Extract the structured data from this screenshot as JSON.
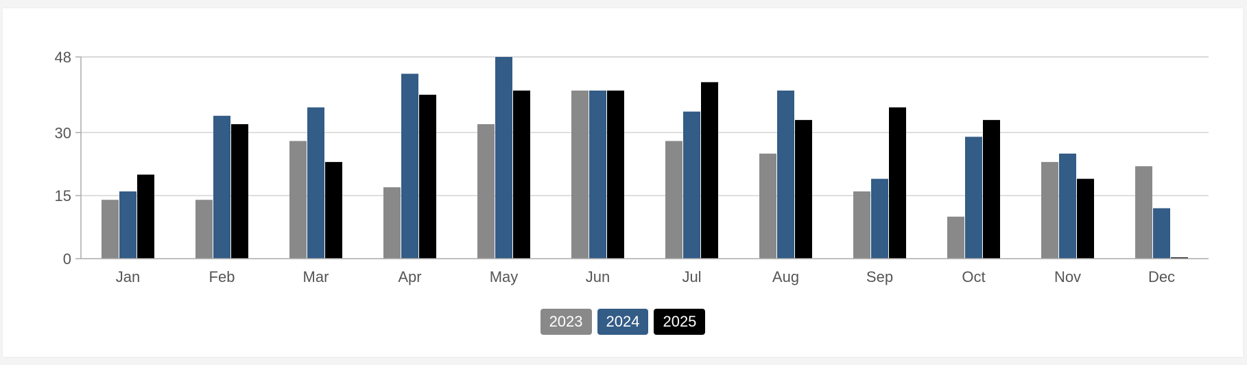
{
  "colors": {
    "2023": "#898989",
    "2024": "#335c86",
    "2025": "#000000",
    "grid": "#d4d4d4",
    "axis": "#aaaaaa"
  },
  "legend": {
    "items": [
      {
        "label": "2023",
        "color": "#898989"
      },
      {
        "label": "2024",
        "color": "#335c86"
      },
      {
        "label": "2025",
        "color": "#000000"
      }
    ]
  },
  "chart_data": {
    "type": "bar",
    "title": "",
    "xlabel": "",
    "ylabel": "",
    "ylim": [
      0,
      48
    ],
    "yticks": [
      0,
      15,
      30,
      48
    ],
    "grid": true,
    "legend_position": "bottom-center",
    "categories": [
      "Jan",
      "Feb",
      "Mar",
      "Apr",
      "May",
      "Jun",
      "Jul",
      "Aug",
      "Sep",
      "Oct",
      "Nov",
      "Dec"
    ],
    "series": [
      {
        "name": "2023",
        "color": "#898989",
        "values": [
          14,
          14,
          28,
          17,
          32,
          40,
          28,
          25,
          16,
          10,
          23,
          22
        ]
      },
      {
        "name": "2024",
        "color": "#335c86",
        "values": [
          16,
          34,
          36,
          44,
          48,
          40,
          35,
          40,
          19,
          29,
          25,
          12
        ]
      },
      {
        "name": "2025",
        "color": "#000000",
        "values": [
          20,
          32,
          23,
          39,
          40,
          40,
          42,
          33,
          36,
          33,
          19,
          0.3
        ]
      }
    ]
  }
}
